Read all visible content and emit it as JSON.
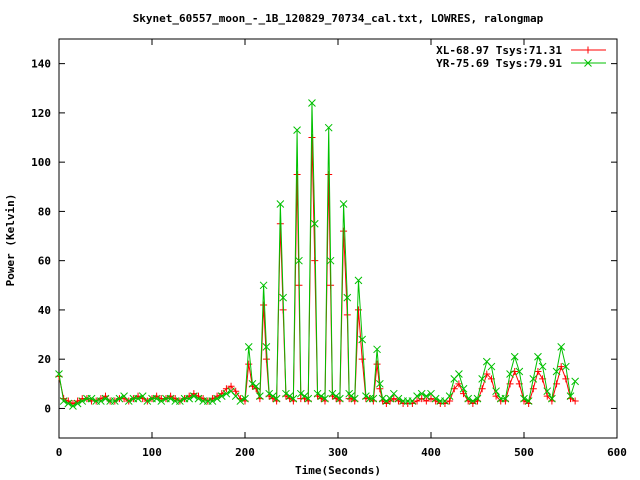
{
  "chart_data": {
    "type": "line",
    "title": "Skynet_60557_moon_-_1B_120829_70734_cal.txt, LOWRES, ralongmap",
    "xlabel": "Time(Seconds)",
    "ylabel": "Power (Kelvin)",
    "xlim": [
      0,
      600
    ],
    "ylim": [
      -12,
      150
    ],
    "xticks": [
      0,
      100,
      200,
      300,
      400,
      500,
      600
    ],
    "yticks": [
      0,
      20,
      40,
      60,
      80,
      100,
      120,
      140
    ],
    "grid": false,
    "legend_position": "top-right",
    "series": [
      {
        "name": "XL-68.97 Tsys:71.31",
        "color": "#ff0000",
        "marker": "plus",
        "x": [
          0,
          5,
          10,
          15,
          20,
          25,
          30,
          35,
          40,
          45,
          50,
          55,
          60,
          65,
          70,
          75,
          80,
          85,
          90,
          95,
          100,
          105,
          110,
          115,
          120,
          125,
          130,
          135,
          140,
          145,
          150,
          155,
          160,
          165,
          170,
          175,
          180,
          185,
          190,
          195,
          200,
          204,
          208,
          212,
          216,
          220,
          223,
          226,
          230,
          234,
          238,
          241,
          244,
          248,
          252,
          256,
          258,
          260,
          264,
          268,
          272,
          275,
          278,
          282,
          286,
          290,
          292,
          294,
          298,
          302,
          306,
          310,
          312,
          314,
          318,
          322,
          326,
          330,
          334,
          338,
          342,
          345,
          348,
          352,
          356,
          360,
          365,
          370,
          375,
          380,
          385,
          390,
          395,
          400,
          405,
          410,
          415,
          420,
          425,
          430,
          435,
          440,
          445,
          450,
          455,
          460,
          465,
          470,
          475,
          480,
          485,
          490,
          495,
          500,
          505,
          510,
          515,
          520,
          525,
          530,
          535,
          540,
          545,
          550,
          555
        ],
        "y": [
          13,
          4,
          3,
          2,
          3,
          4,
          4,
          3,
          3,
          4,
          5,
          3,
          3,
          4,
          4,
          3,
          4,
          5,
          4,
          3,
          4,
          5,
          4,
          4,
          5,
          4,
          3,
          4,
          5,
          6,
          5,
          4,
          3,
          4,
          5,
          6,
          8,
          9,
          7,
          4,
          3,
          18,
          9,
          8,
          4,
          42,
          20,
          5,
          4,
          3,
          75,
          40,
          5,
          4,
          3,
          95,
          50,
          4,
          4,
          3,
          110,
          60,
          5,
          4,
          3,
          95,
          50,
          5,
          4,
          3,
          72,
          38,
          4,
          4,
          3,
          40,
          20,
          4,
          4,
          3,
          18,
          8,
          3,
          2,
          3,
          4,
          3,
          2,
          2,
          2,
          3,
          4,
          3,
          4,
          3,
          2,
          2,
          3,
          8,
          10,
          6,
          3,
          2,
          3,
          8,
          14,
          12,
          5,
          3,
          3,
          10,
          15,
          10,
          3,
          2,
          8,
          15,
          12,
          5,
          3,
          10,
          17,
          12,
          4,
          3
        ]
      },
      {
        "name": "YR-75.69 Tsys:79.91",
        "color": "#00c000",
        "marker": "cross",
        "x": [
          0,
          5,
          10,
          15,
          20,
          25,
          30,
          35,
          40,
          45,
          50,
          55,
          60,
          65,
          70,
          75,
          80,
          85,
          90,
          95,
          100,
          105,
          110,
          115,
          120,
          125,
          130,
          135,
          140,
          145,
          150,
          155,
          160,
          165,
          170,
          175,
          180,
          185,
          190,
          195,
          200,
          204,
          208,
          212,
          216,
          220,
          223,
          226,
          230,
          234,
          238,
          241,
          244,
          248,
          252,
          256,
          258,
          260,
          264,
          268,
          272,
          275,
          278,
          282,
          286,
          290,
          292,
          294,
          298,
          302,
          306,
          310,
          312,
          314,
          318,
          322,
          326,
          330,
          334,
          338,
          342,
          345,
          348,
          352,
          356,
          360,
          365,
          370,
          375,
          380,
          385,
          390,
          395,
          400,
          405,
          410,
          415,
          420,
          425,
          430,
          435,
          440,
          445,
          450,
          455,
          460,
          465,
          470,
          475,
          480,
          485,
          490,
          495,
          500,
          505,
          510,
          515,
          520,
          525,
          530,
          535,
          540,
          545,
          550,
          555
        ],
        "y": [
          14,
          3,
          2,
          1,
          2,
          3,
          4,
          4,
          3,
          3,
          4,
          3,
          3,
          4,
          5,
          3,
          4,
          4,
          5,
          3,
          4,
          4,
          3,
          4,
          4,
          3,
          3,
          4,
          4,
          5,
          4,
          3,
          3,
          3,
          4,
          5,
          6,
          7,
          5,
          3,
          4,
          25,
          10,
          9,
          5,
          50,
          25,
          6,
          5,
          4,
          83,
          45,
          6,
          5,
          4,
          113,
          60,
          6,
          5,
          4,
          124,
          75,
          6,
          5,
          4,
          114,
          60,
          6,
          5,
          4,
          83,
          45,
          6,
          5,
          4,
          52,
          28,
          5,
          4,
          4,
          24,
          10,
          4,
          3,
          4,
          6,
          4,
          3,
          3,
          3,
          5,
          6,
          5,
          6,
          4,
          3,
          3,
          5,
          12,
          14,
          8,
          4,
          3,
          4,
          12,
          19,
          17,
          7,
          4,
          4,
          14,
          21,
          15,
          4,
          3,
          12,
          21,
          17,
          7,
          4,
          15,
          25,
          17,
          5,
          11
        ]
      }
    ]
  }
}
